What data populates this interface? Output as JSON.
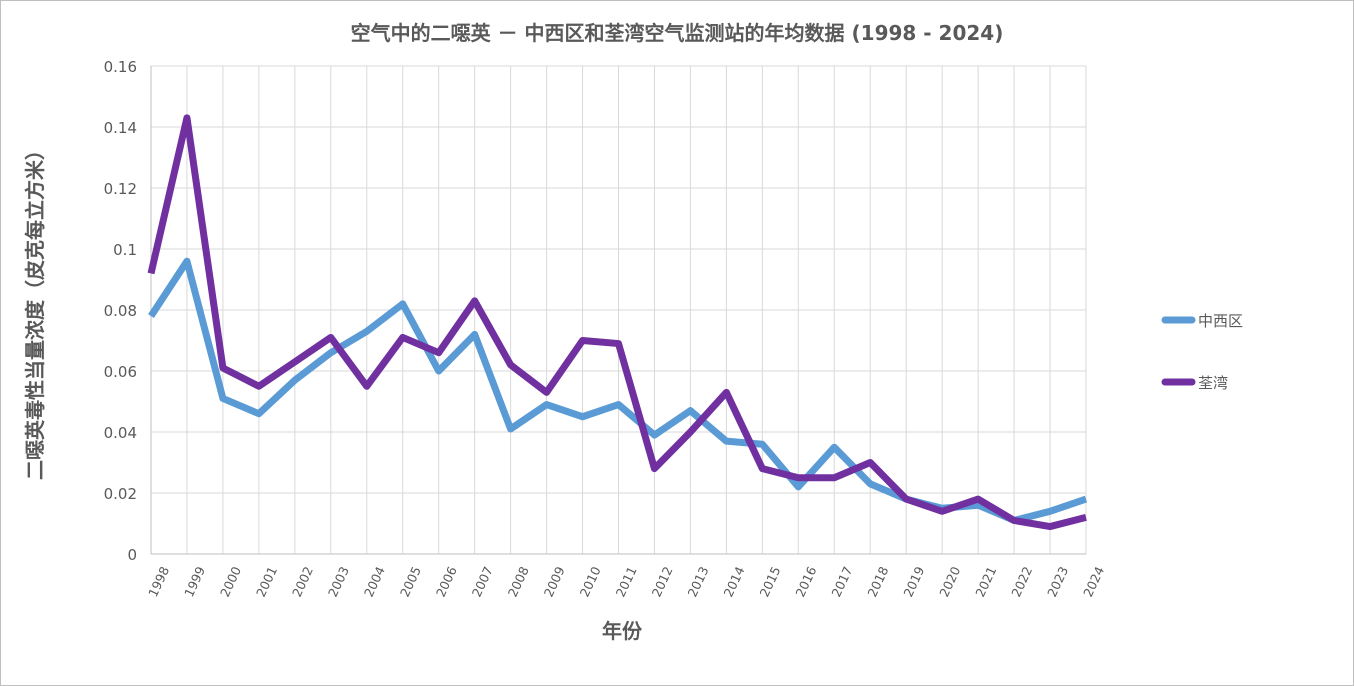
{
  "chart_data": {
    "type": "line",
    "title": "空气中的二噁英 － 中西区和荃湾空气监测站的年均数据 (1998 - 2024)",
    "xlabel": "年份",
    "ylabel": "二噁英毒性当量浓度（皮克每立方米）",
    "ylim": [
      0,
      0.16
    ],
    "yticks": [
      "0",
      "0.02",
      "0.04",
      "0.06",
      "0.08",
      "0.1",
      "0.12",
      "0.14",
      "0.16"
    ],
    "grid": true,
    "legend_position": "right",
    "categories": [
      "1998",
      "1999",
      "2000",
      "2001",
      "2002",
      "2003",
      "2004",
      "2005",
      "2006",
      "2007",
      "2008",
      "2009",
      "2010",
      "2011",
      "2012",
      "2013",
      "2014",
      "2015",
      "2016",
      "2017",
      "2018",
      "2019",
      "2020",
      "2021",
      "2022",
      "2023",
      "2024"
    ],
    "series": [
      {
        "name": "中西区",
        "color": "#5B9BD5",
        "values": [
          0.078,
          0.096,
          0.051,
          0.046,
          0.057,
          0.066,
          0.073,
          0.082,
          0.06,
          0.072,
          0.041,
          0.049,
          0.045,
          0.049,
          0.039,
          0.047,
          0.037,
          0.036,
          0.022,
          0.035,
          0.023,
          0.018,
          0.015,
          0.016,
          0.011,
          0.014,
          0.018
        ]
      },
      {
        "name": "荃湾",
        "color": "#7030A0",
        "values": [
          0.092,
          0.143,
          0.061,
          0.055,
          0.063,
          0.071,
          0.055,
          0.071,
          0.066,
          0.083,
          0.062,
          0.053,
          0.07,
          0.069,
          0.028,
          0.04,
          0.053,
          0.028,
          0.025,
          0.025,
          0.03,
          0.018,
          0.014,
          0.018,
          0.011,
          0.009,
          0.012
        ]
      }
    ]
  }
}
